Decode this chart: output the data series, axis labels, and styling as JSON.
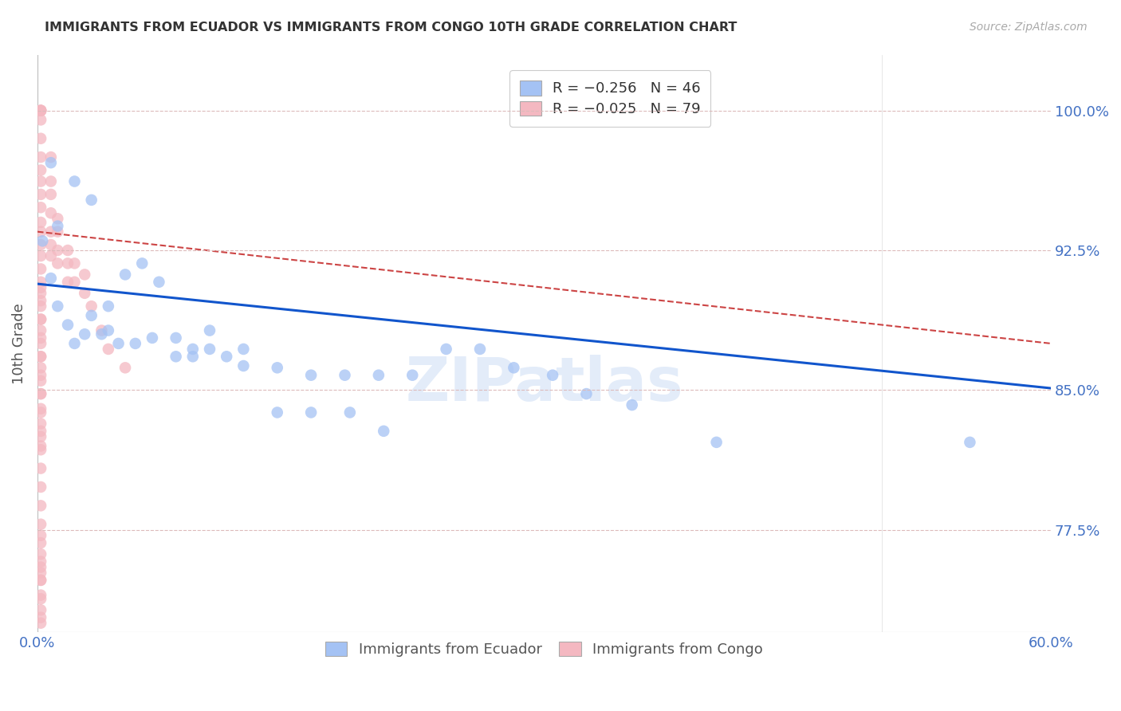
{
  "title": "IMMIGRANTS FROM ECUADOR VS IMMIGRANTS FROM CONGO 10TH GRADE CORRELATION CHART",
  "source": "Source: ZipAtlas.com",
  "ylabel": "10th Grade",
  "ytick_labels": [
    "77.5%",
    "85.0%",
    "92.5%",
    "100.0%"
  ],
  "ytick_values": [
    0.775,
    0.85,
    0.925,
    1.0
  ],
  "xlim": [
    0.0,
    0.6
  ],
  "ylim": [
    0.72,
    1.03
  ],
  "legend_ecuador": "R = −0.256   N = 46",
  "legend_congo": "R = −0.025   N = 79",
  "ecuador_color": "#a4c2f4",
  "congo_color": "#f4b8c1",
  "ecuador_line_color": "#1155cc",
  "congo_line_color": "#cc4444",
  "background_color": "#ffffff",
  "watermark": "ZIPatlas",
  "ecuador_line_x0": 0.0,
  "ecuador_line_y0": 0.907,
  "ecuador_line_x1": 0.6,
  "ecuador_line_y1": 0.851,
  "congo_line_x0": 0.0,
  "congo_line_y0": 0.935,
  "congo_line_x1": 0.6,
  "congo_line_y1": 0.875,
  "ecuador_points_x": [
    0.003,
    0.008,
    0.012,
    0.018,
    0.022,
    0.028,
    0.032,
    0.038,
    0.042,
    0.048,
    0.058,
    0.068,
    0.082,
    0.092,
    0.102,
    0.112,
    0.122,
    0.142,
    0.162,
    0.182,
    0.202,
    0.222,
    0.242,
    0.262,
    0.282,
    0.305,
    0.325,
    0.012,
    0.022,
    0.032,
    0.042,
    0.052,
    0.062,
    0.072,
    0.082,
    0.092,
    0.102,
    0.122,
    0.142,
    0.162,
    0.185,
    0.205,
    0.352,
    0.402,
    0.552,
    0.008
  ],
  "ecuador_points_y": [
    0.93,
    0.91,
    0.895,
    0.885,
    0.875,
    0.88,
    0.89,
    0.88,
    0.895,
    0.875,
    0.875,
    0.878,
    0.868,
    0.872,
    0.872,
    0.868,
    0.863,
    0.862,
    0.858,
    0.858,
    0.858,
    0.858,
    0.872,
    0.872,
    0.862,
    0.858,
    0.848,
    0.938,
    0.962,
    0.952,
    0.882,
    0.912,
    0.918,
    0.908,
    0.878,
    0.868,
    0.882,
    0.872,
    0.838,
    0.838,
    0.838,
    0.828,
    0.842,
    0.822,
    0.822,
    0.972
  ],
  "congo_points_x": [
    0.002,
    0.002,
    0.002,
    0.002,
    0.002,
    0.002,
    0.002,
    0.002,
    0.002,
    0.002,
    0.002,
    0.002,
    0.002,
    0.002,
    0.002,
    0.002,
    0.002,
    0.002,
    0.002,
    0.002,
    0.002,
    0.002,
    0.002,
    0.002,
    0.002,
    0.002,
    0.002,
    0.002,
    0.002,
    0.002,
    0.008,
    0.008,
    0.008,
    0.008,
    0.008,
    0.008,
    0.008,
    0.012,
    0.012,
    0.012,
    0.012,
    0.018,
    0.018,
    0.018,
    0.022,
    0.022,
    0.028,
    0.028,
    0.032,
    0.038,
    0.042,
    0.052,
    0.002,
    0.002,
    0.002,
    0.002,
    0.002,
    0.002,
    0.002,
    0.002,
    0.002,
    0.002,
    0.002,
    0.002,
    0.002,
    0.002,
    0.002,
    0.002,
    0.002,
    0.002,
    0.002,
    0.002,
    0.002,
    0.002,
    0.002,
    0.002,
    0.002,
    0.002,
    0.002
  ],
  "congo_points_y": [
    1.0,
    1.0,
    1.0,
    1.0,
    0.995,
    0.985,
    0.975,
    0.968,
    0.962,
    0.955,
    0.948,
    0.94,
    0.935,
    0.928,
    0.922,
    0.915,
    0.908,
    0.902,
    0.895,
    0.888,
    0.882,
    0.875,
    0.868,
    0.862,
    0.855,
    0.848,
    0.84,
    0.832,
    0.825,
    0.82,
    0.975,
    0.962,
    0.955,
    0.945,
    0.935,
    0.928,
    0.922,
    0.942,
    0.935,
    0.925,
    0.918,
    0.925,
    0.918,
    0.908,
    0.918,
    0.908,
    0.912,
    0.902,
    0.895,
    0.882,
    0.872,
    0.862,
    0.905,
    0.898,
    0.888,
    0.878,
    0.868,
    0.858,
    0.848,
    0.838,
    0.828,
    0.818,
    0.808,
    0.798,
    0.788,
    0.778,
    0.772,
    0.762,
    0.755,
    0.748,
    0.74,
    0.732,
    0.725,
    0.768,
    0.758,
    0.748,
    0.738,
    0.728,
    0.752
  ]
}
